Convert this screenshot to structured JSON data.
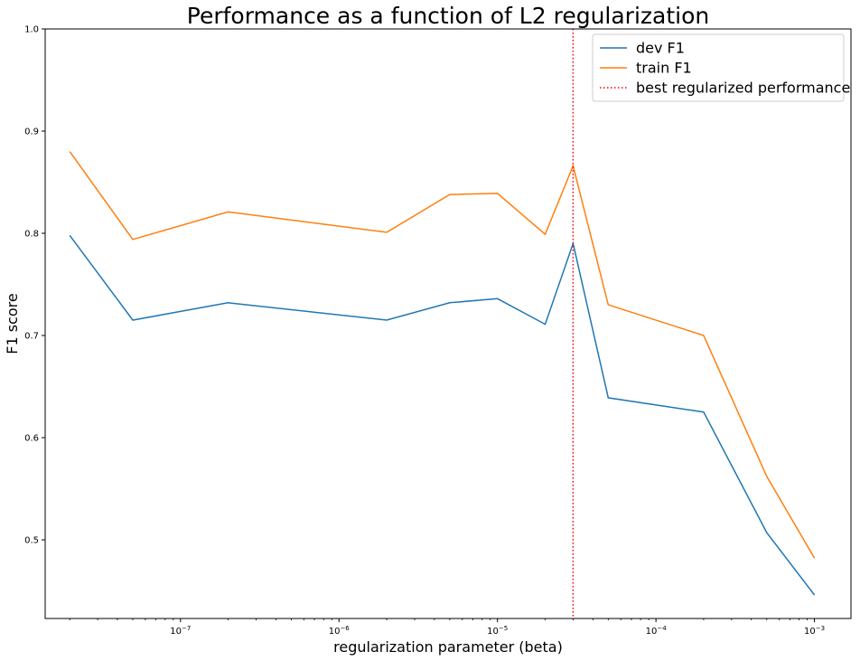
{
  "chart_data": {
    "type": "line",
    "title": "Performance as a function of L2 regularization",
    "xlabel": "regularization parameter (beta)",
    "ylabel": "F1 score",
    "xscale": "log",
    "xlim": [
      1.4e-08,
      0.0017
    ],
    "ylim": [
      0.423,
      1.0
    ],
    "grid": false,
    "legend_position": "top-right",
    "x": [
      2e-08,
      5e-08,
      2e-07,
      2e-06,
      5e-06,
      1e-05,
      2e-05,
      3e-05,
      5e-05,
      0.0002,
      0.0005,
      0.001
    ],
    "series": [
      {
        "name": "dev F1",
        "color": "#1f77b4",
        "values": [
          0.798,
          0.715,
          0.732,
          0.715,
          0.732,
          0.736,
          0.711,
          0.79,
          0.639,
          0.625,
          0.507,
          0.446
        ]
      },
      {
        "name": "train F1",
        "color": "#ff7f0e",
        "values": [
          0.88,
          0.794,
          0.821,
          0.801,
          0.838,
          0.839,
          0.799,
          0.866,
          0.73,
          0.7,
          0.562,
          0.482
        ]
      }
    ],
    "vline": {
      "name": "best regularized performance",
      "x": 3e-05,
      "color": "#ff0000",
      "style": "dotted"
    },
    "y_ticks": [
      {
        "value": 0.5,
        "label": "0.5"
      },
      {
        "value": 0.6,
        "label": "0.6"
      },
      {
        "value": 0.7,
        "label": "0.7"
      },
      {
        "value": 0.8,
        "label": "0.8"
      },
      {
        "value": 0.9,
        "label": "0.9"
      },
      {
        "value": 1.0,
        "label": "1.0"
      }
    ],
    "x_ticks": [
      {
        "value": 1e-07,
        "base": "10",
        "exp": "−7"
      },
      {
        "value": 1e-06,
        "base": "10",
        "exp": "−6"
      },
      {
        "value": 1e-05,
        "base": "10",
        "exp": "−5"
      },
      {
        "value": 0.0001,
        "base": "10",
        "exp": "−4"
      },
      {
        "value": 0.001,
        "base": "10",
        "exp": "−3"
      }
    ]
  }
}
